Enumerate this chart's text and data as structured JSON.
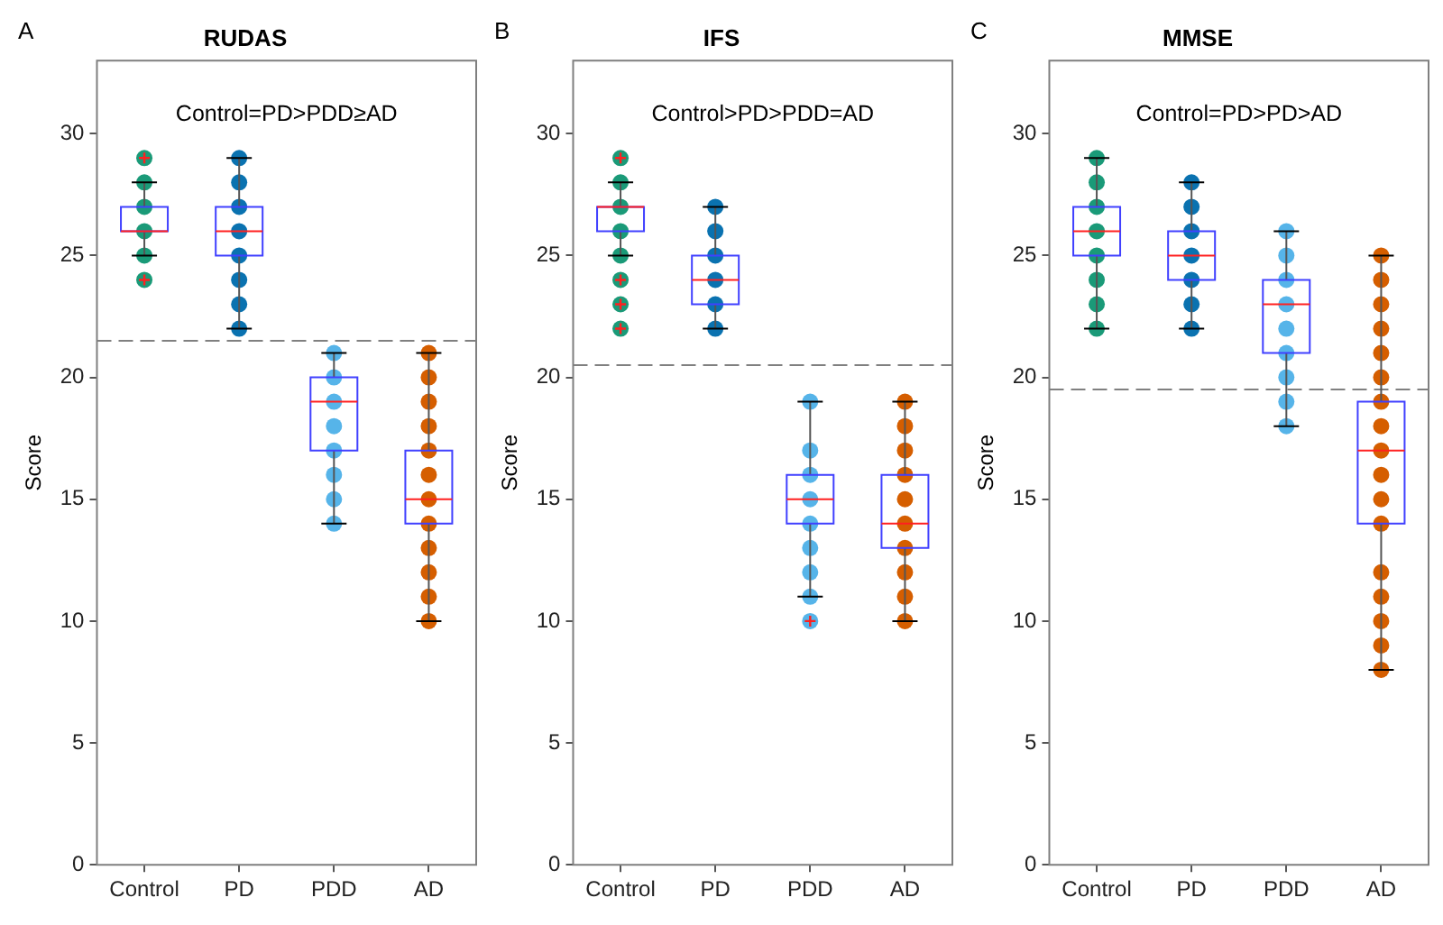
{
  "chart_data": [
    {
      "type": "box",
      "title": "RUDAS",
      "ylabel": "Score",
      "annotations": [
        "A",
        "Control=PD>PDD≥AD"
      ],
      "categories": [
        "Control",
        "PD",
        "PDD",
        "AD"
      ],
      "ylim": [
        0,
        33
      ],
      "yticks": [
        0,
        5,
        10,
        15,
        20,
        25,
        30
      ],
      "grid": false,
      "legend": false,
      "boxes": [
        {
          "low": 25,
          "q1": 26,
          "median": 26,
          "q3": 27,
          "high": 28,
          "outliers": [
            29,
            24
          ]
        },
        {
          "low": 22,
          "q1": 25,
          "median": 26,
          "q3": 27,
          "high": 29
        },
        {
          "low": 14,
          "q1": 17,
          "median": 19,
          "q3": 20,
          "high": 21
        },
        {
          "low": 10,
          "q1": 14,
          "median": 15,
          "q3": 17,
          "high": 21
        }
      ],
      "ref_lines": [
        {
          "axis": "y",
          "value": 21.5,
          "color": "#808080",
          "line_style": "dashed"
        }
      ],
      "series": [
        {
          "type": "scatter",
          "color": "#1a9a78",
          "x": [
            "Control",
            "Control",
            "Control",
            "Control"
          ],
          "values": [
            25,
            26,
            27,
            28
          ]
        },
        {
          "type": "scatter",
          "color": "#0a72b0",
          "x": [
            "PD",
            "PD",
            "PD",
            "PD",
            "PD",
            "PD",
            "PD",
            "PD"
          ],
          "values": [
            22,
            23,
            24,
            25,
            26,
            27,
            28,
            29
          ]
        },
        {
          "type": "scatter",
          "color": "#56b4e9",
          "x": [
            "PDD",
            "PDD",
            "PDD",
            "PDD",
            "PDD",
            "PDD",
            "PDD",
            "PDD"
          ],
          "values": [
            14,
            15,
            16,
            17,
            18,
            19,
            20,
            21
          ]
        },
        {
          "type": "scatter",
          "color": "#d55e00",
          "x": [
            "AD",
            "AD",
            "AD",
            "AD",
            "AD",
            "AD",
            "AD",
            "AD",
            "AD",
            "AD",
            "AD",
            "AD"
          ],
          "values": [
            10,
            11,
            12,
            13,
            14,
            15,
            16,
            17,
            18,
            19,
            20,
            21
          ]
        }
      ]
    },
    {
      "type": "box",
      "title": "IFS",
      "ylabel": "Score",
      "annotations": [
        "B",
        "Control>PD>PDD=AD"
      ],
      "categories": [
        "Control",
        "PD",
        "PDD",
        "AD"
      ],
      "ylim": [
        0,
        33
      ],
      "yticks": [
        0,
        5,
        10,
        15,
        20,
        25,
        30
      ],
      "grid": false,
      "legend": false,
      "boxes": [
        {
          "low": 25,
          "q1": 26,
          "median": 27,
          "q3": 27,
          "high": 28,
          "outliers": [
            29,
            24,
            23,
            22
          ]
        },
        {
          "low": 22,
          "q1": 23,
          "median": 24,
          "q3": 25,
          "high": 27
        },
        {
          "low": 11,
          "q1": 14,
          "median": 15,
          "q3": 16,
          "high": 19,
          "outliers": [
            10
          ]
        },
        {
          "low": 10,
          "q1": 13,
          "median": 14,
          "q3": 16,
          "high": 19
        }
      ],
      "ref_lines": [
        {
          "axis": "y",
          "value": 20.5,
          "color": "#808080",
          "line_style": "dashed"
        }
      ],
      "series": [
        {
          "type": "scatter",
          "color": "#1a9a78",
          "x": [
            "Control",
            "Control",
            "Control",
            "Control"
          ],
          "values": [
            25,
            26,
            27,
            28
          ]
        },
        {
          "type": "scatter",
          "color": "#0a72b0",
          "x": [
            "PD",
            "PD",
            "PD",
            "PD",
            "PD",
            "PD"
          ],
          "values": [
            22,
            23,
            24,
            25,
            26,
            27
          ]
        },
        {
          "type": "scatter",
          "color": "#56b4e9",
          "x": [
            "PDD",
            "PDD",
            "PDD",
            "PDD",
            "PDD",
            "PDD",
            "PDD",
            "PDD"
          ],
          "values": [
            11,
            12,
            13,
            14,
            15,
            16,
            17,
            19
          ]
        },
        {
          "type": "scatter",
          "color": "#d55e00",
          "x": [
            "AD",
            "AD",
            "AD",
            "AD",
            "AD",
            "AD",
            "AD",
            "AD",
            "AD",
            "AD"
          ],
          "values": [
            10,
            11,
            12,
            13,
            14,
            15,
            16,
            17,
            18,
            19
          ]
        }
      ]
    },
    {
      "type": "box",
      "title": "MMSE",
      "ylabel": "Score",
      "annotations": [
        "C",
        "Control=PD>PD>AD"
      ],
      "categories": [
        "Control",
        "PD",
        "PDD",
        "AD"
      ],
      "ylim": [
        0,
        33
      ],
      "yticks": [
        0,
        5,
        10,
        15,
        20,
        25,
        30
      ],
      "grid": false,
      "legend": false,
      "boxes": [
        {
          "low": 22,
          "q1": 25,
          "median": 26,
          "q3": 27,
          "high": 29
        },
        {
          "low": 22,
          "q1": 24,
          "median": 25,
          "q3": 26,
          "high": 28
        },
        {
          "low": 18,
          "q1": 21,
          "median": 23,
          "q3": 24,
          "high": 26
        },
        {
          "low": 8,
          "q1": 14,
          "median": 17,
          "q3": 19,
          "high": 25
        }
      ],
      "ref_lines": [
        {
          "axis": "y",
          "value": 19.5,
          "color": "#808080",
          "line_style": "dashed"
        }
      ],
      "series": [
        {
          "type": "scatter",
          "color": "#1a9a78",
          "x": [
            "Control",
            "Control",
            "Control",
            "Control",
            "Control",
            "Control",
            "Control",
            "Control"
          ],
          "values": [
            22,
            23,
            24,
            25,
            26,
            27,
            28,
            29
          ]
        },
        {
          "type": "scatter",
          "color": "#0a72b0",
          "x": [
            "PD",
            "PD",
            "PD",
            "PD",
            "PD",
            "PD",
            "PD"
          ],
          "values": [
            22,
            23,
            24,
            25,
            26,
            27,
            28
          ]
        },
        {
          "type": "scatter",
          "color": "#56b4e9",
          "x": [
            "PDD",
            "PDD",
            "PDD",
            "PDD",
            "PDD",
            "PDD",
            "PDD",
            "PDD",
            "PDD"
          ],
          "values": [
            18,
            19,
            20,
            21,
            22,
            23,
            24,
            25,
            26
          ]
        },
        {
          "type": "scatter",
          "color": "#d55e00",
          "x": [
            "AD",
            "AD",
            "AD",
            "AD",
            "AD",
            "AD",
            "AD",
            "AD",
            "AD",
            "AD",
            "AD",
            "AD",
            "AD",
            "AD",
            "AD",
            "AD",
            "AD"
          ],
          "values": [
            8,
            9,
            10,
            11,
            12,
            14,
            15,
            16,
            17,
            18,
            19,
            20,
            21,
            22,
            23,
            24,
            25
          ]
        }
      ]
    }
  ]
}
